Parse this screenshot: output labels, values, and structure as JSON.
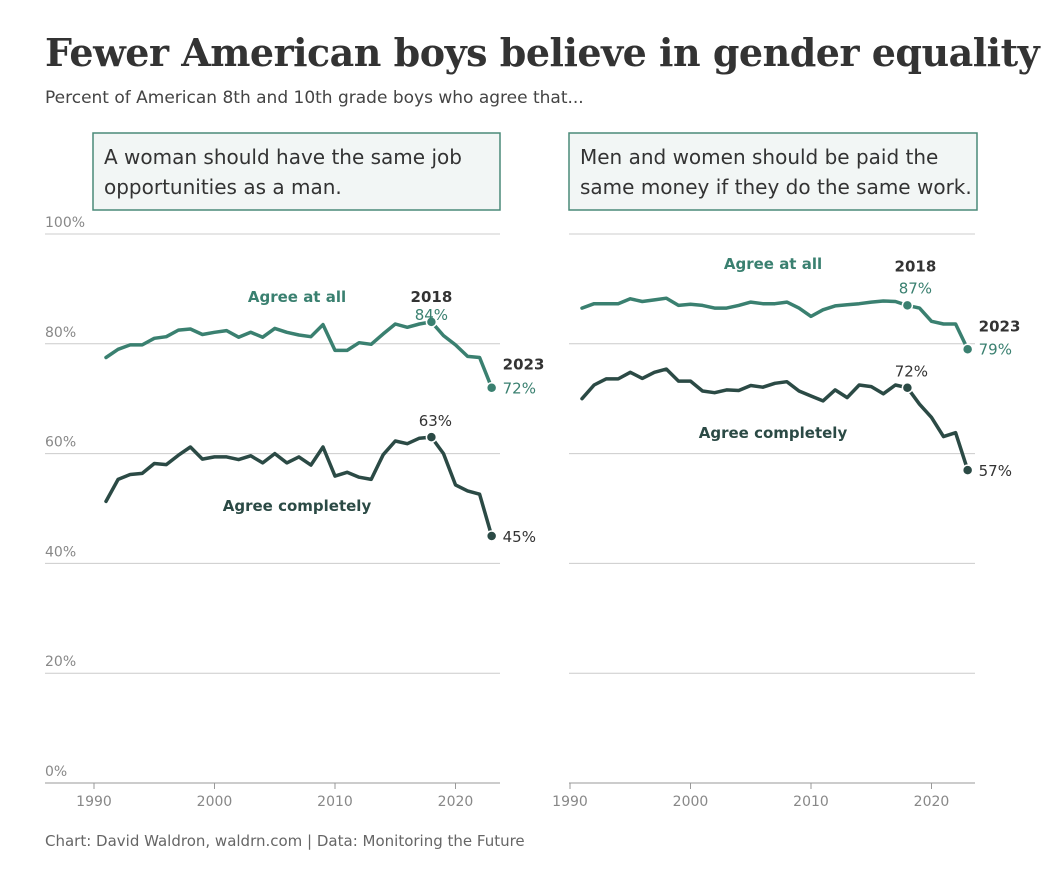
{
  "title": "Fewer American boys believe in gender equality",
  "subtitle": "Percent of American 8th and 10th grade boys who agree that...",
  "source": "Chart: David Waldron, waldrn.com | Data: Monitoring the Future",
  "colors": {
    "agree_at_all": "#3a8070",
    "agree_completely": "#2b4a45",
    "panel_border": "#4a8a78",
    "panel_fill": "#f2f6f5",
    "grid": "#cccccc"
  },
  "chart_data": [
    {
      "type": "line",
      "title": "A woman should have the same job opportunities as a man.",
      "title_lines": [
        "A woman should have the same job",
        "opportunities as a man."
      ],
      "x_ticks": [
        "1990",
        "2000",
        "2010",
        "2020"
      ],
      "y_ticks": [
        "0%",
        "20%",
        "40%",
        "60%",
        "80%",
        "100%"
      ],
      "xlim": [
        1990,
        2024
      ],
      "ylim": [
        0,
        100
      ],
      "series": [
        {
          "name": "Agree at all",
          "x": [
            1991,
            1992,
            1993,
            1994,
            1995,
            1996,
            1997,
            1998,
            1999,
            2000,
            2001,
            2002,
            2003,
            2004,
            2005,
            2006,
            2007,
            2008,
            2009,
            2010,
            2011,
            2012,
            2013,
            2014,
            2015,
            2016,
            2017,
            2018,
            2019,
            2020,
            2021,
            2022,
            2023
          ],
          "values": [
            77.5,
            79,
            79.8,
            79.8,
            81,
            81.3,
            82.5,
            82.7,
            81.7,
            82.1,
            82.4,
            81.2,
            82.1,
            81.2,
            82.8,
            82.1,
            81.6,
            81.3,
            83.5,
            78.8,
            78.8,
            80.2,
            79.9,
            81.8,
            83.6,
            83,
            83.6,
            84,
            81.5,
            79.8,
            77.7,
            77.5,
            72
          ],
          "annotations": [
            {
              "x": 2018,
              "year_label": "2018",
              "value_label": "84%"
            },
            {
              "x": 2023,
              "year_label": "2023",
              "value_label": "72%"
            }
          ]
        },
        {
          "name": "Agree completely",
          "x": [
            1991,
            1992,
            1993,
            1994,
            1995,
            1996,
            1997,
            1998,
            1999,
            2000,
            2001,
            2002,
            2003,
            2004,
            2005,
            2006,
            2007,
            2008,
            2009,
            2010,
            2011,
            2012,
            2013,
            2014,
            2015,
            2016,
            2017,
            2018,
            2019,
            2020,
            2021,
            2022,
            2023
          ],
          "values": [
            51.3,
            55.3,
            56.2,
            56.4,
            58.2,
            58,
            59.7,
            61.2,
            59,
            59.4,
            59.4,
            58.9,
            59.6,
            58.3,
            60,
            58.3,
            59.4,
            57.9,
            61.2,
            55.9,
            56.6,
            55.7,
            55.3,
            59.8,
            62.3,
            61.8,
            62.8,
            63,
            60,
            54.3,
            53.2,
            52.6,
            45
          ],
          "annotations": [
            {
              "x": 2018,
              "year_label": "",
              "value_label": "63%"
            },
            {
              "x": 2023,
              "year_label": "",
              "value_label": "45%"
            }
          ]
        }
      ]
    },
    {
      "type": "line",
      "title": "Men and women should be paid the same money if they do the same work.",
      "title_lines": [
        "Men and women should be paid the",
        "same money if they do the same work."
      ],
      "x_ticks": [
        "1990",
        "2000",
        "2010",
        "2020"
      ],
      "y_ticks": [
        "0%",
        "20%",
        "40%",
        "60%",
        "80%",
        "100%"
      ],
      "xlim": [
        1990,
        2024
      ],
      "ylim": [
        0,
        100
      ],
      "series": [
        {
          "name": "Agree at all",
          "x": [
            1991,
            1992,
            1993,
            1994,
            1995,
            1996,
            1997,
            1998,
            1999,
            2000,
            2001,
            2002,
            2003,
            2004,
            2005,
            2006,
            2007,
            2008,
            2009,
            2010,
            2011,
            2012,
            2013,
            2014,
            2015,
            2016,
            2017,
            2018,
            2019,
            2020,
            2021,
            2022,
            2023
          ],
          "values": [
            86.5,
            87.3,
            87.3,
            87.3,
            88.2,
            87.7,
            88,
            88.3,
            87,
            87.2,
            87,
            86.5,
            86.5,
            87,
            87.6,
            87.3,
            87.3,
            87.6,
            86.5,
            85,
            86.2,
            86.9,
            87.1,
            87.3,
            87.6,
            87.8,
            87.7,
            87,
            86.5,
            84.1,
            83.6,
            83.6,
            79
          ],
          "annotations": [
            {
              "x": 2018,
              "year_label": "2018",
              "value_label": "87%"
            },
            {
              "x": 2023,
              "year_label": "2023",
              "value_label": "79%"
            }
          ]
        },
        {
          "name": "Agree completely",
          "x": [
            1991,
            1992,
            1993,
            1994,
            1995,
            1996,
            1997,
            1998,
            1999,
            2000,
            2001,
            2002,
            2003,
            2004,
            2005,
            2006,
            2007,
            2008,
            2009,
            2010,
            2011,
            2012,
            2013,
            2014,
            2015,
            2016,
            2017,
            2018,
            2019,
            2020,
            2021,
            2022,
            2023
          ],
          "values": [
            70,
            72.5,
            73.6,
            73.6,
            74.8,
            73.7,
            74.8,
            75.4,
            73.2,
            73.2,
            71.4,
            71.1,
            71.6,
            71.5,
            72.4,
            72.1,
            72.8,
            73.1,
            71.4,
            70.5,
            69.6,
            71.6,
            70.2,
            72.5,
            72.2,
            70.9,
            72.5,
            72,
            69,
            66.6,
            63.1,
            63.8,
            57
          ],
          "annotations": [
            {
              "x": 2018,
              "year_label": "",
              "value_label": "72%"
            },
            {
              "x": 2023,
              "year_label": "",
              "value_label": "57%"
            }
          ]
        }
      ]
    }
  ]
}
